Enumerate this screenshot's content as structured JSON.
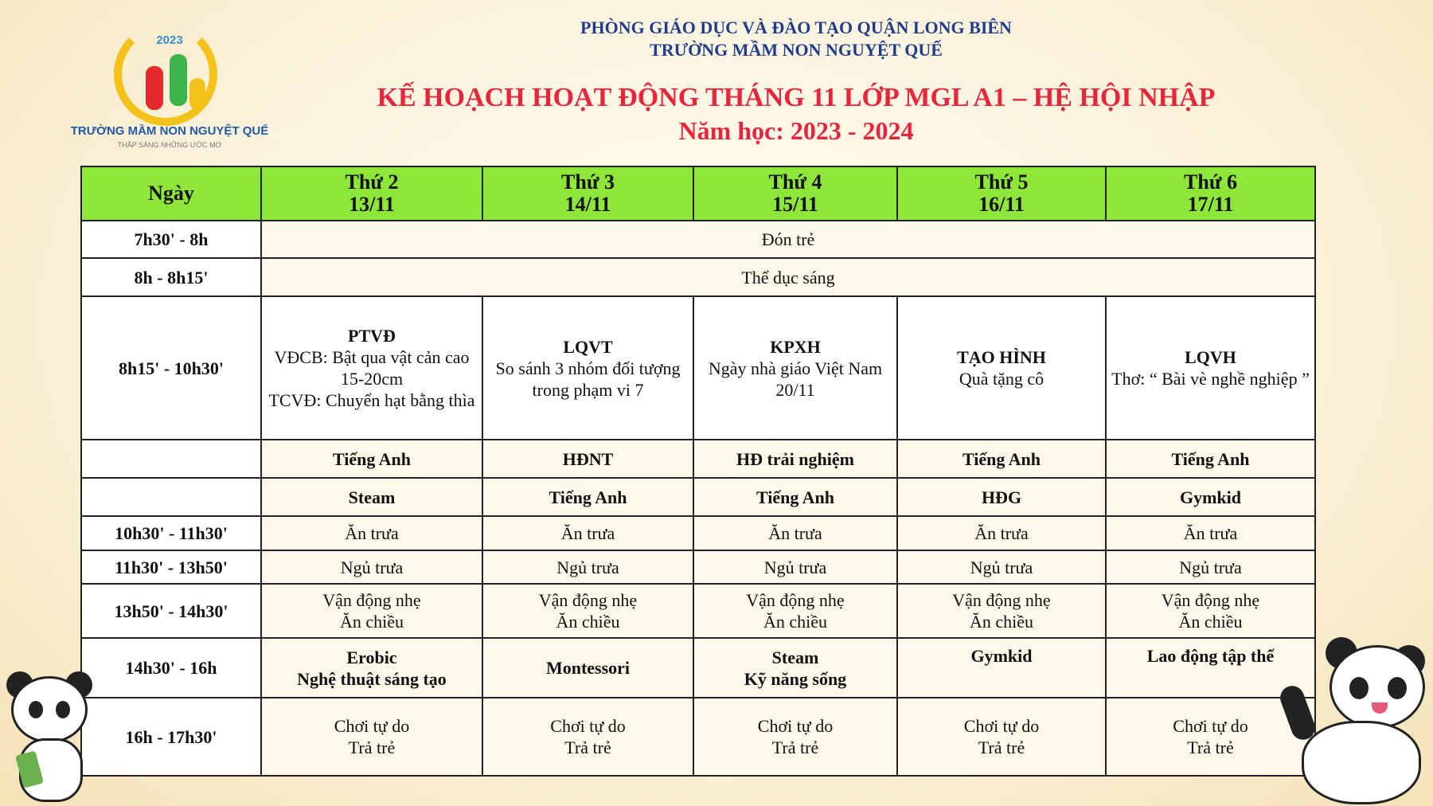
{
  "logo": {
    "year": "2023",
    "school": "TRƯỜNG MẦM NON NGUYỆT QUẾ",
    "slogan": "THẮP SÁNG NHỮNG ƯỚC MƠ"
  },
  "header": {
    "line1": "PHÒNG GIÁO DỤC VÀ ĐÀO TẠO QUẬN LONG BIÊN",
    "line2": "TRƯỜNG MẦM NON NGUYỆT QUẾ",
    "title": "KẾ HOẠCH HOẠT ĐỘNG THÁNG 11 LỚP MGL A1 – HỆ HỘI NHẬP",
    "year": "Năm học: 2023 - 2024"
  },
  "table": {
    "columns": [
      {
        "label": "Ngày"
      },
      {
        "label": "Thứ 2",
        "date": "13/11"
      },
      {
        "label": "Thứ 3",
        "date": "14/11"
      },
      {
        "label": "Thứ 4",
        "date": "15/11"
      },
      {
        "label": "Thứ 5",
        "date": "16/11"
      },
      {
        "label": "Thứ 6",
        "date": "17/11"
      }
    ],
    "r1": {
      "time": "7h30' - 8h",
      "all": "Đón trẻ"
    },
    "r2": {
      "time": "8h - 8h15'",
      "all": "Thể dục sáng"
    },
    "r3": {
      "time": "8h15' - 10h30'",
      "cells": [
        {
          "t": "PTVĐ",
          "d1": "VĐCB: Bật qua vật cản cao 15-20cm",
          "d2": "TCVĐ: Chuyển hạt bằng thìa"
        },
        {
          "t": "LQVT",
          "d1": "So sánh 3 nhóm đối tượng trong phạm vi 7"
        },
        {
          "t": "KPXH",
          "d1": "Ngày nhà giáo Việt Nam 20/11"
        },
        {
          "t": "TẠO HÌNH",
          "d1": "Quà tặng cô"
        },
        {
          "t": "LQVH",
          "d1": "Thơ: “ Bài vè nghề nghiệp ”"
        }
      ]
    },
    "r4": {
      "time": "",
      "cells": [
        "Tiếng Anh",
        "HĐNT",
        "HĐ trải nghiệm",
        "Tiếng Anh",
        "Tiếng Anh"
      ]
    },
    "r5": {
      "time": "",
      "cells": [
        "Steam",
        "Tiếng Anh",
        "Tiếng Anh",
        "HĐG",
        "Gymkid"
      ]
    },
    "r6": {
      "time": "10h30' - 11h30'",
      "cells": [
        "Ăn trưa",
        "Ăn trưa",
        "Ăn trưa",
        "Ăn trưa",
        "Ăn trưa"
      ]
    },
    "r7": {
      "time": "11h30' - 13h50'",
      "cells": [
        "Ngủ trưa",
        "Ngủ trưa",
        "Ngủ trưa",
        "Ngủ trưa",
        "Ngủ trưa"
      ]
    },
    "r8": {
      "time": "13h50' - 14h30'",
      "a": "Vận động nhẹ",
      "b": "Ăn chiều"
    },
    "r9": {
      "time": "14h30' - 16h",
      "cells": [
        [
          "Erobic",
          "Nghệ thuật sáng tạo"
        ],
        [
          "Montessori"
        ],
        [
          "Steam",
          "Kỹ năng sống"
        ],
        [
          "Gymkid"
        ],
        [
          "Lao động tập thể"
        ]
      ]
    },
    "r10": {
      "time": "16h - 17h30'",
      "a": "Chơi tự do",
      "b": "Trả trẻ"
    }
  }
}
